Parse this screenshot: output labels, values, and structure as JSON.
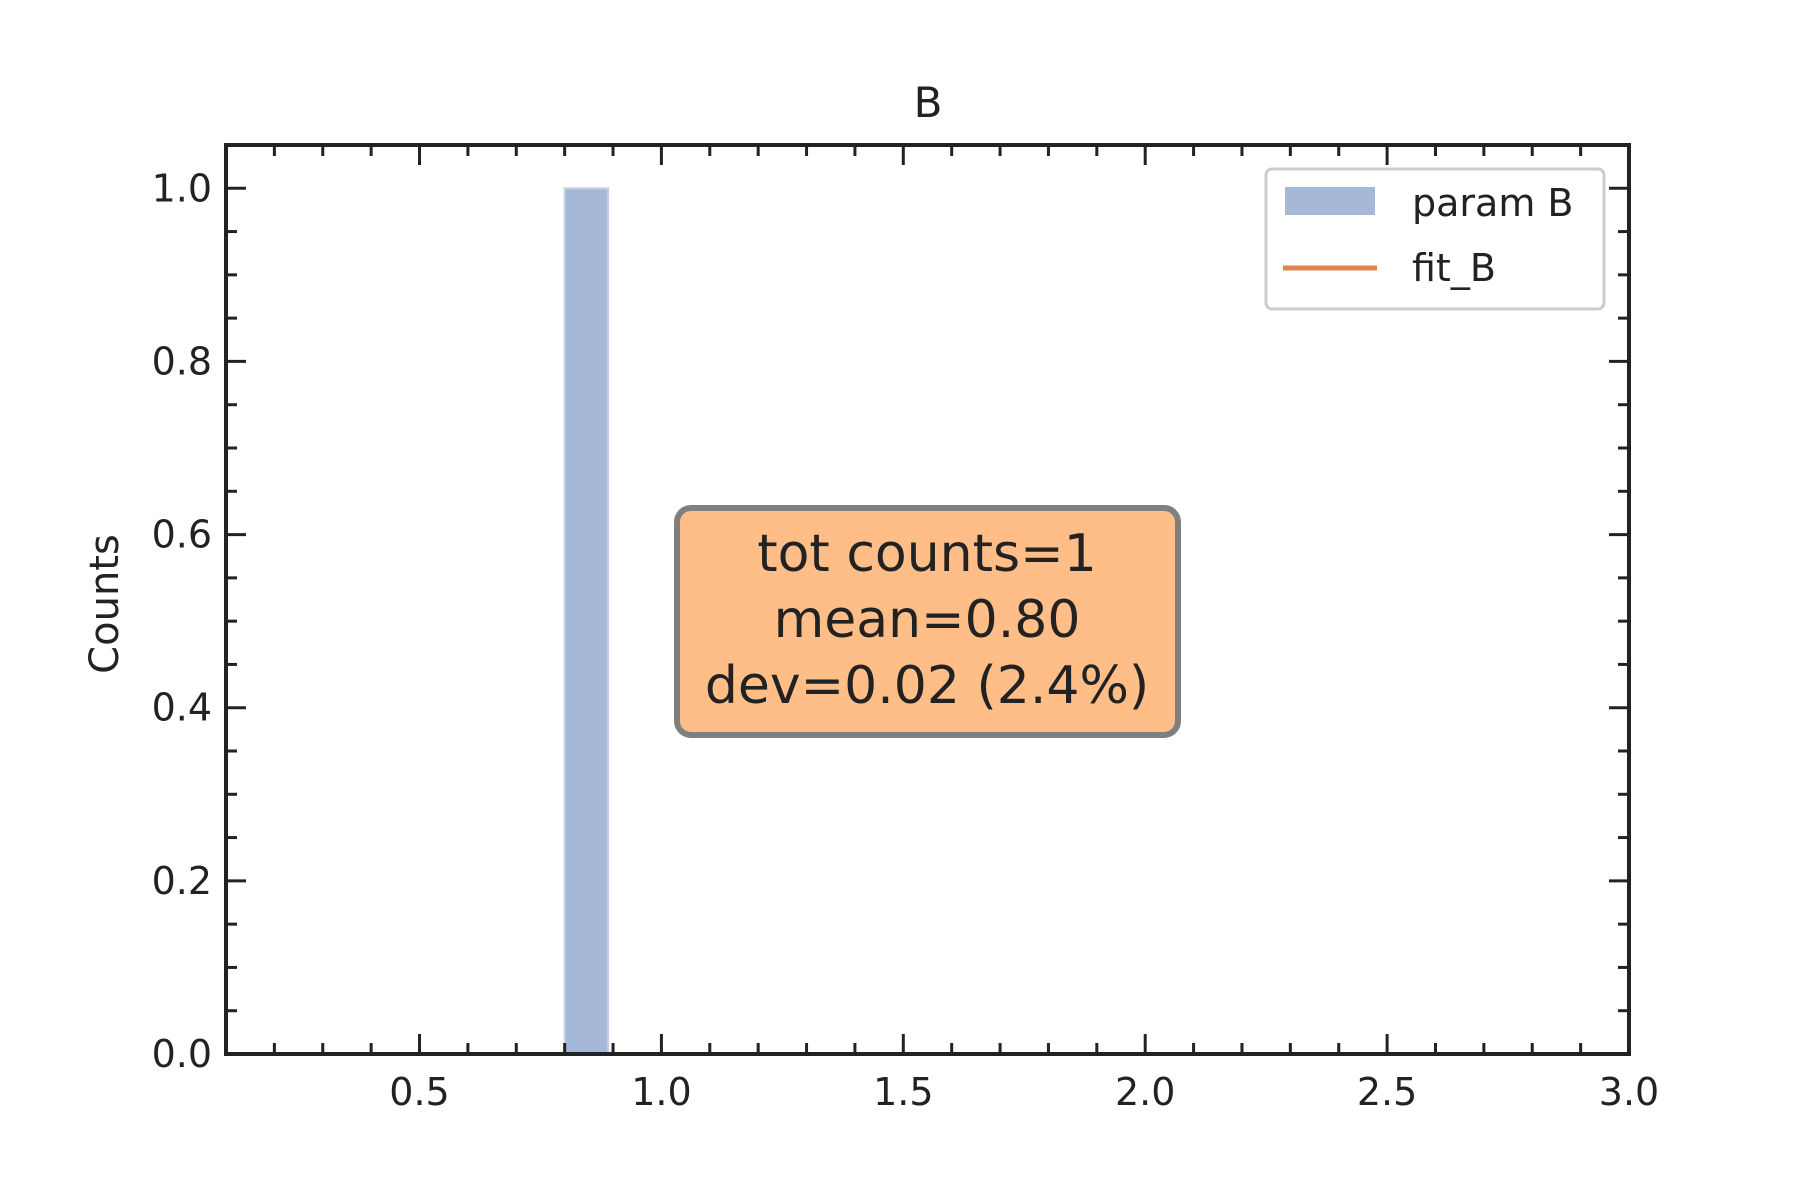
{
  "chart_data": {
    "type": "bar",
    "title": "B",
    "xlabel": "",
    "ylabel": "Counts",
    "xlim": [
      0.1,
      3.0
    ],
    "ylim": [
      0.0,
      1.05
    ],
    "x_ticks": [
      "0.5",
      "1.0",
      "1.5",
      "2.0",
      "2.5",
      "3.0"
    ],
    "y_ticks": [
      "0.0",
      "0.2",
      "0.4",
      "0.6",
      "0.8",
      "1.0"
    ],
    "series": [
      {
        "name": "param B",
        "kind": "histogram",
        "color": "#a5b8d8",
        "bins": [
          {
            "x0": 0.8,
            "x1": 0.89,
            "count": 1
          }
        ]
      },
      {
        "name": "fit_B",
        "kind": "line",
        "color": "#dd8452",
        "points": []
      }
    ],
    "legend": {
      "position": "top-right"
    },
    "annotation": {
      "lines": [
        "tot counts=1",
        "mean=0.80",
        "dev=0.02 (2.4%)"
      ],
      "position": "center",
      "facecolor": "#ffbd87",
      "edgecolor": "#7f7f7f"
    },
    "grid": false
  }
}
